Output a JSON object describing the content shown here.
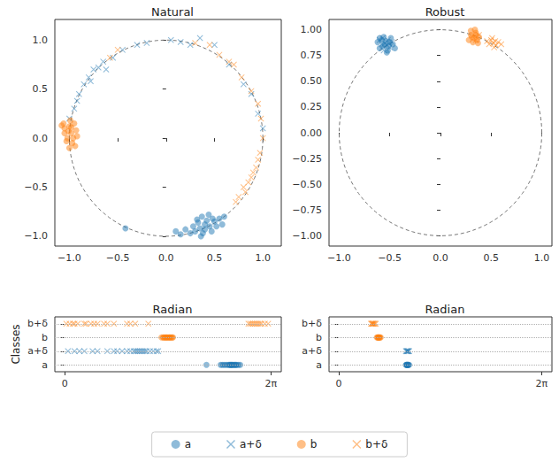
{
  "chart_data": [
    {
      "type": "scatter",
      "title": "Natural",
      "xlim": [
        -1.15,
        1.19
      ],
      "ylim": [
        -1.1,
        1.21
      ],
      "xticks": [
        {
          "value": -1,
          "label": "−1.0"
        },
        {
          "value": -0.5,
          "label": "−0.5"
        },
        {
          "value": 0,
          "label": "0.0"
        },
        {
          "value": 0.5,
          "label": "0.5"
        },
        {
          "value": 1,
          "label": "1.0"
        }
      ],
      "yticks": [
        {
          "value": -1,
          "label": "−1.0"
        },
        {
          "value": -0.5,
          "label": "−0.5"
        },
        {
          "value": 0,
          "label": "0.0"
        },
        {
          "value": 0.5,
          "label": "0.5"
        },
        {
          "value": 1,
          "label": "1.0"
        }
      ],
      "reference_circle": {
        "center": [
          0,
          0
        ],
        "radius": 1,
        "line_style": "dashed"
      },
      "legend": "bottom",
      "series": [
        {
          "name": "a",
          "color": "#1f77b4",
          "marker": "circle",
          "values": [
            [
              0.35,
              -0.92
            ],
            [
              0.4,
              -0.88
            ],
            [
              0.45,
              -0.9
            ],
            [
              0.3,
              -0.95
            ],
            [
              0.38,
              -0.97
            ],
            [
              0.5,
              -0.85
            ],
            [
              0.55,
              -0.82
            ],
            [
              0.42,
              -0.84
            ],
            [
              0.28,
              -0.9
            ],
            [
              0.33,
              -0.86
            ],
            [
              0.47,
              -0.95
            ],
            [
              0.52,
              -0.9
            ],
            [
              0.6,
              -0.8
            ],
            [
              0.25,
              -0.97
            ],
            [
              0.2,
              -0.93
            ],
            [
              0.15,
              -0.98
            ],
            [
              0.37,
              -0.8
            ],
            [
              0.44,
              -0.78
            ],
            [
              0.36,
              -1.0
            ],
            [
              0.4,
              -0.93
            ],
            [
              0.32,
              -0.83
            ],
            [
              0.58,
              -0.88
            ],
            [
              -0.42,
              -0.92
            ],
            [
              0.48,
              -0.82
            ],
            [
              0.1,
              -0.95
            ]
          ]
        },
        {
          "name": "a+δ",
          "color": "#1f77b4",
          "marker": "x",
          "values": [
            [
              -0.95,
              0.3
            ],
            [
              -0.9,
              0.45
            ],
            [
              -0.85,
              0.55
            ],
            [
              -0.8,
              0.62
            ],
            [
              -0.75,
              0.7
            ],
            [
              -0.7,
              0.72
            ],
            [
              -0.65,
              0.78
            ],
            [
              -0.55,
              0.82
            ],
            [
              -0.45,
              0.9
            ],
            [
              -0.3,
              0.95
            ],
            [
              -0.2,
              0.97
            ],
            [
              0.05,
              1.0
            ],
            [
              0.15,
              0.98
            ],
            [
              0.25,
              0.95
            ],
            [
              0.35,
              1.02
            ],
            [
              0.5,
              0.95
            ],
            [
              0.65,
              0.75
            ],
            [
              0.8,
              0.55
            ],
            [
              0.88,
              0.45
            ],
            [
              0.95,
              0.25
            ],
            [
              1.0,
              0.1
            ],
            [
              -1.0,
              0.2
            ],
            [
              -0.92,
              0.38
            ],
            [
              -0.78,
              0.58
            ],
            [
              -0.62,
              0.7
            ]
          ]
        },
        {
          "name": "b",
          "color": "#ff7f0e",
          "marker": "circle",
          "values": [
            [
              -1.05,
              0.1
            ],
            [
              -1.0,
              0.12
            ],
            [
              -0.98,
              0.05
            ],
            [
              -1.02,
              0.0
            ],
            [
              -0.95,
              0.15
            ],
            [
              -1.08,
              0.13
            ],
            [
              -0.97,
              -0.05
            ],
            [
              -1.0,
              -0.1
            ],
            [
              -0.93,
              0.08
            ],
            [
              -1.05,
              0.05
            ],
            [
              -0.99,
              0.18
            ],
            [
              -1.03,
              -0.03
            ],
            [
              -0.96,
              0.0
            ],
            [
              -1.01,
              0.07
            ],
            [
              -0.94,
              -0.08
            ],
            [
              -1.06,
              0.15
            ],
            [
              -0.98,
              0.11
            ],
            [
              -0.92,
              0.02
            ]
          ]
        },
        {
          "name": "b+δ",
          "color": "#ff7f0e",
          "marker": "x",
          "values": [
            [
              0.95,
              0.35
            ],
            [
              0.98,
              0.2
            ],
            [
              1.0,
              0.0
            ],
            [
              0.97,
              -0.15
            ],
            [
              0.93,
              -0.3
            ],
            [
              0.88,
              -0.4
            ],
            [
              0.8,
              -0.5
            ],
            [
              0.75,
              -0.6
            ],
            [
              0.72,
              -0.65
            ],
            [
              0.9,
              -0.35
            ],
            [
              0.85,
              -0.45
            ],
            [
              0.78,
              0.62
            ],
            [
              0.7,
              0.75
            ],
            [
              0.55,
              0.85
            ],
            [
              0.45,
              0.95
            ],
            [
              0.3,
              0.97
            ],
            [
              -0.5,
              0.9
            ],
            [
              -0.58,
              0.82
            ],
            [
              0.88,
              0.48
            ],
            [
              0.95,
              -0.22
            ],
            [
              0.82,
              -0.55
            ],
            [
              0.65,
              0.78
            ]
          ]
        }
      ]
    },
    {
      "type": "scatter",
      "title": "Robust",
      "xlim": [
        -1.1,
        1.1
      ],
      "ylim": [
        -1.1,
        1.1
      ],
      "xticks": [
        {
          "value": -1,
          "label": "−1.0"
        },
        {
          "value": -0.5,
          "label": "−0.5"
        },
        {
          "value": 0,
          "label": "0.0"
        },
        {
          "value": 0.5,
          "label": "0.5"
        },
        {
          "value": 1,
          "label": "1.0"
        }
      ],
      "yticks": [
        {
          "value": -1,
          "label": "−1.00"
        },
        {
          "value": -0.75,
          "label": "−0.75"
        },
        {
          "value": -0.5,
          "label": "−0.50"
        },
        {
          "value": -0.25,
          "label": "−0.25"
        },
        {
          "value": 0,
          "label": "0.00"
        },
        {
          "value": 0.25,
          "label": "0.25"
        },
        {
          "value": 0.5,
          "label": "0.50"
        },
        {
          "value": 0.75,
          "label": "0.75"
        },
        {
          "value": 1,
          "label": "1.00"
        }
      ],
      "reference_circle": {
        "center": [
          0,
          0
        ],
        "radius": 1,
        "line_style": "dashed"
      },
      "series": [
        {
          "name": "a",
          "color": "#1f77b4",
          "marker": "circle",
          "values": [
            [
              -0.55,
              0.85
            ],
            [
              -0.5,
              0.88
            ],
            [
              -0.58,
              0.9
            ],
            [
              -0.6,
              0.82
            ],
            [
              -0.52,
              0.8
            ],
            [
              -0.47,
              0.86
            ],
            [
              -0.56,
              0.93
            ],
            [
              -0.62,
              0.88
            ],
            [
              -0.53,
              0.78
            ],
            [
              -0.49,
              0.92
            ],
            [
              -0.57,
              0.84
            ],
            [
              -0.51,
              0.84
            ],
            [
              -0.6,
              0.92
            ],
            [
              -0.45,
              0.82
            ],
            [
              -0.54,
              0.89
            ]
          ]
        },
        {
          "name": "a+δ",
          "color": "#1f77b4",
          "marker": "x",
          "values": [
            [
              -0.55,
              0.87
            ],
            [
              -0.52,
              0.9
            ],
            [
              -0.58,
              0.86
            ],
            [
              -0.5,
              0.83
            ],
            [
              -0.56,
              0.8
            ],
            [
              -0.6,
              0.9
            ],
            [
              -0.48,
              0.88
            ],
            [
              -0.53,
              0.85
            ],
            [
              -0.57,
              0.92
            ],
            [
              -0.51,
              0.87
            ]
          ]
        },
        {
          "name": "b",
          "color": "#ff7f0e",
          "marker": "circle",
          "values": [
            [
              0.33,
              0.92
            ],
            [
              0.3,
              0.95
            ],
            [
              0.36,
              0.9
            ],
            [
              0.35,
              0.97
            ],
            [
              0.28,
              0.9
            ],
            [
              0.32,
              0.88
            ],
            [
              0.38,
              0.93
            ],
            [
              0.3,
              0.99
            ],
            [
              0.34,
              1.0
            ],
            [
              0.37,
              0.87
            ],
            [
              0.31,
              0.93
            ],
            [
              0.35,
              0.95
            ]
          ]
        },
        {
          "name": "b+δ",
          "color": "#ff7f0e",
          "marker": "x",
          "values": [
            [
              0.52,
              0.87
            ],
            [
              0.5,
              0.9
            ],
            [
              0.55,
              0.85
            ],
            [
              0.48,
              0.86
            ],
            [
              0.57,
              0.88
            ],
            [
              0.53,
              0.83
            ],
            [
              0.46,
              0.89
            ],
            [
              0.6,
              0.86
            ],
            [
              0.51,
              0.92
            ],
            [
              0.54,
              0.89
            ],
            [
              0.35,
              0.9
            ],
            [
              0.38,
              0.95
            ]
          ]
        }
      ]
    },
    {
      "type": "strip",
      "title": "Radian",
      "ylabel": "Classes",
      "categories": [
        "a",
        "a+δ",
        "b",
        "b+δ"
      ],
      "xlim": [
        -0.3,
        6.6
      ],
      "xticks": [
        0,
        {
          "value": 6.283185,
          "label": "2π"
        }
      ],
      "grid": true,
      "series": [
        {
          "name": "a",
          "color": "#1f77b4",
          "marker": "circle",
          "x": [
            4.32,
            4.75,
            4.8,
            4.9,
            4.95,
            5.0,
            5.02,
            5.05,
            5.08,
            5.1,
            5.12,
            5.15,
            5.18,
            5.2,
            5.22,
            5.25,
            5.3,
            5.35,
            4.85,
            5.06
          ]
        },
        {
          "name": "a+δ",
          "color": "#1f77b4",
          "marker": "x",
          "x": [
            0.1,
            0.3,
            0.45,
            0.6,
            0.85,
            1.0,
            1.3,
            1.5,
            1.6,
            1.75,
            1.9,
            2.0,
            2.1,
            2.15,
            2.2,
            2.25,
            2.3,
            2.35,
            2.4,
            2.45,
            2.5,
            2.6,
            2.7,
            2.8,
            2.85
          ]
        },
        {
          "name": "b",
          "color": "#ff7f0e",
          "marker": "circle",
          "x": [
            2.95,
            3.0,
            3.02,
            3.05,
            3.08,
            3.1,
            3.12,
            3.15,
            3.18,
            3.2,
            3.22,
            3.25,
            3.28,
            3.3
          ]
        },
        {
          "name": "b+δ",
          "color": "#ff7f0e",
          "marker": "x",
          "x": [
            0.05,
            0.15,
            0.25,
            0.3,
            0.4,
            0.6,
            0.65,
            0.8,
            0.9,
            1.0,
            1.2,
            1.3,
            1.5,
            1.9,
            2.0,
            2.15,
            2.55,
            5.6,
            5.65,
            5.7,
            5.75,
            5.8,
            5.85,
            5.9,
            5.95,
            6.0,
            6.1,
            6.2
          ]
        }
      ]
    },
    {
      "type": "strip",
      "title": "Radian",
      "categories": [
        "a",
        "a+δ",
        "b",
        "b+δ"
      ],
      "xlim": [
        -0.3,
        6.6
      ],
      "xticks": [
        0,
        {
          "value": 6.283185,
          "label": "2π"
        }
      ],
      "grid": true,
      "series": [
        {
          "name": "a",
          "color": "#1f77b4",
          "marker": "circle",
          "x": [
            2.08,
            2.1,
            2.12,
            2.14,
            2.16,
            2.18,
            2.1,
            2.13,
            2.15,
            2.11
          ]
        },
        {
          "name": "a+δ",
          "color": "#1f77b4",
          "marker": "x",
          "x": [
            2.08,
            2.1,
            2.12,
            2.14,
            2.16,
            2.18,
            2.13
          ]
        },
        {
          "name": "b",
          "color": "#ff7f0e",
          "marker": "circle",
          "x": [
            1.18,
            1.2,
            1.22,
            1.24,
            1.26,
            1.28,
            1.3,
            1.22,
            1.25
          ]
        },
        {
          "name": "b+δ",
          "color": "#ff7f0e",
          "marker": "x",
          "x": [
            1.0,
            1.02,
            1.04,
            1.06,
            1.08,
            1.1,
            1.12,
            1.15,
            1.05
          ]
        }
      ]
    }
  ]
}
